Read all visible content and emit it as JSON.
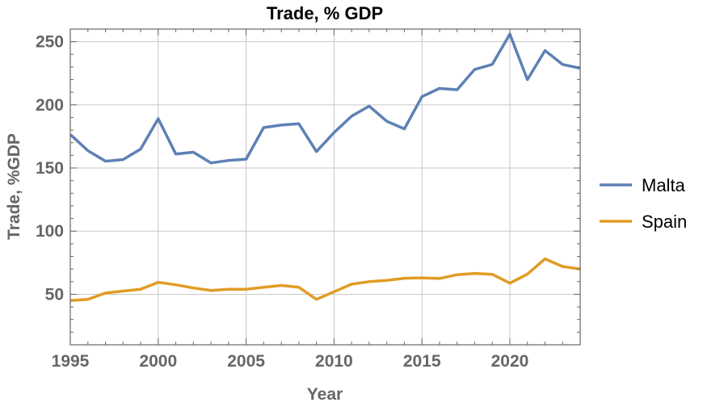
{
  "chart_data": {
    "type": "line",
    "title": "Trade, % GDP",
    "xlabel": "Year",
    "ylabel": "Trade, %GDP",
    "xlim": [
      1995,
      2024
    ],
    "ylim": [
      10,
      260
    ],
    "grid": true,
    "legend_position": "right",
    "x_ticks": [
      1995,
      2000,
      2005,
      2010,
      2015,
      2020
    ],
    "y_ticks": [
      50,
      100,
      150,
      200,
      250
    ],
    "x": [
      1995,
      1996,
      1997,
      1998,
      1999,
      2000,
      2001,
      2002,
      2003,
      2004,
      2005,
      2006,
      2007,
      2008,
      2009,
      2010,
      2011,
      2012,
      2013,
      2014,
      2015,
      2016,
      2017,
      2018,
      2019,
      2020,
      2021,
      2022,
      2023,
      2024
    ],
    "series": [
      {
        "name": "Malta",
        "color": "#5E81B5",
        "values": [
          176.5,
          163.7,
          155.4,
          156.7,
          165,
          189,
          161,
          162.5,
          154,
          156,
          157,
          182,
          184,
          185,
          163,
          178,
          191,
          199,
          187,
          181,
          206.5,
          213,
          212,
          228,
          232,
          256,
          220,
          243,
          232,
          229
        ]
      },
      {
        "name": "Spain",
        "color": "#E19C24",
        "values": [
          45,
          46,
          51,
          52.5,
          54,
          59.5,
          57.5,
          55,
          53,
          54,
          54,
          55.5,
          57,
          55.5,
          46,
          52,
          58,
          60,
          61,
          62.7,
          63,
          62.5,
          65.5,
          66.5,
          65.8,
          58.8,
          66,
          78,
          72,
          70
        ]
      }
    ]
  }
}
